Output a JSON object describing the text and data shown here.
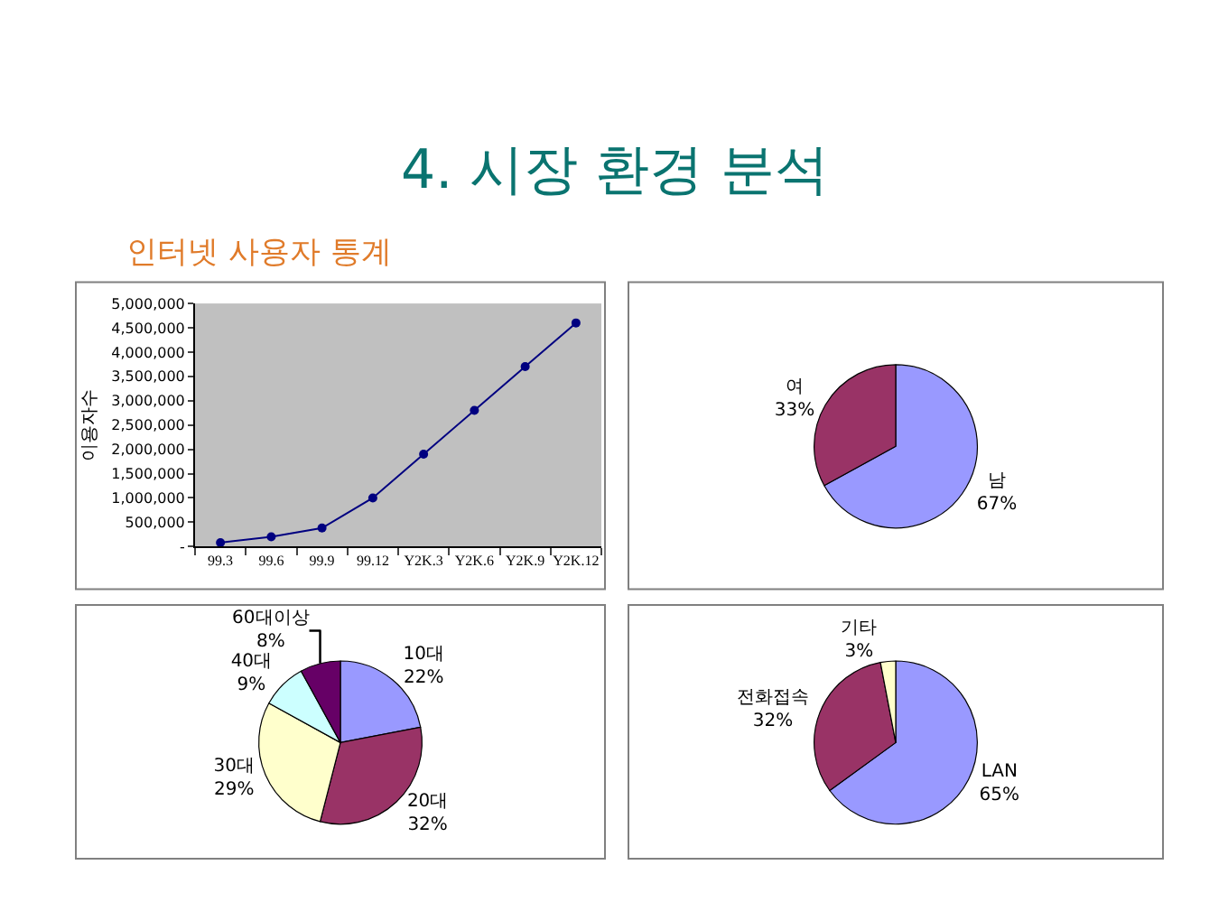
{
  "chart_data": [
    {
      "type": "line",
      "title": "4. 시장 환경 분석",
      "subtitle": "인터넷 사용자 통계",
      "ylabel": "이용자수",
      "categories": [
        "99.3",
        "99.6",
        "99.9",
        "99.12",
        "Y2K.3",
        "Y2K.6",
        "Y2K.9",
        "Y2K.12"
      ],
      "series": [
        {
          "color": "#000080",
          "values": [
            80000,
            200000,
            380000,
            1000000,
            1900000,
            2800000,
            3700000,
            4600000
          ]
        }
      ],
      "ylim": [
        0,
        5000000
      ],
      "yticks": [
        {
          "value": 0,
          "label": "-"
        },
        {
          "value": 500000,
          "label": "500,000"
        },
        {
          "value": 1000000,
          "label": "1,000,000"
        },
        {
          "value": 1500000,
          "label": "1,500,000"
        },
        {
          "value": 2000000,
          "label": "2,000,000"
        },
        {
          "value": 2500000,
          "label": "2,500,000"
        },
        {
          "value": 3000000,
          "label": "3,000,000"
        },
        {
          "value": 3500000,
          "label": "3,500,000"
        },
        {
          "value": 4000000,
          "label": "4,000,000"
        },
        {
          "value": 4500000,
          "label": "4,500,000"
        },
        {
          "value": 5000000,
          "label": "5,000,000"
        }
      ],
      "marker": "circle"
    },
    {
      "type": "pie",
      "categories": [
        "남",
        "여"
      ],
      "values": [
        67,
        33
      ],
      "colors": [
        "#9999ff",
        "#993366"
      ],
      "value_labels": [
        "67%",
        "33%"
      ]
    },
    {
      "type": "pie",
      "categories": [
        "10대",
        "20대",
        "30대",
        "40대",
        "60대이상"
      ],
      "values": [
        22,
        32,
        29,
        9,
        8
      ],
      "colors": [
        "#9999ff",
        "#993366",
        "#ffffcc",
        "#ccffff",
        "#660066"
      ],
      "value_labels": [
        "22%",
        "32%",
        "29%",
        "9%",
        "8%"
      ]
    },
    {
      "type": "pie",
      "categories": [
        "LAN",
        "전화접속",
        "기타"
      ],
      "values": [
        65,
        32,
        3
      ],
      "colors": [
        "#9999ff",
        "#993366",
        "#ffffcc"
      ],
      "value_labels": [
        "65%",
        "32%",
        "3%"
      ]
    }
  ]
}
